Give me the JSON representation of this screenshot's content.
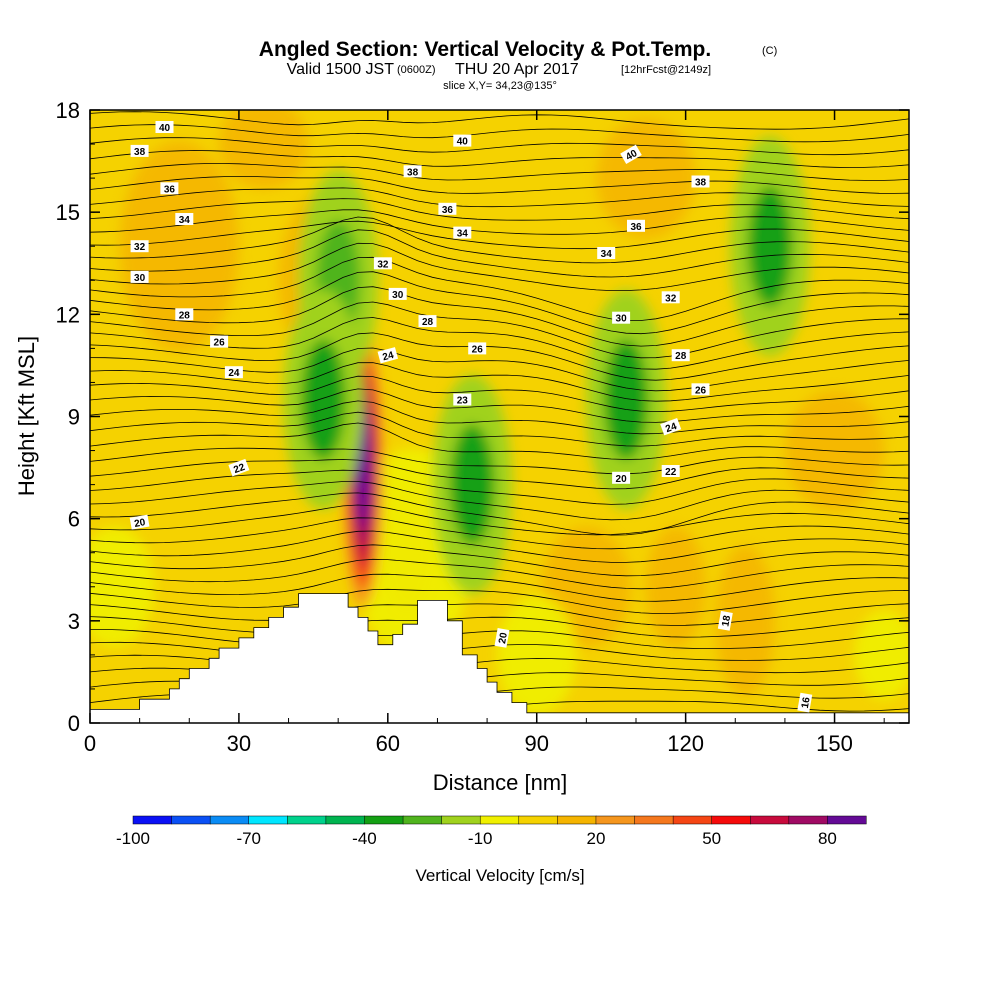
{
  "chart_data": {
    "type": "heatmap",
    "title": "Angled Section: Vertical Velocity & Pot.Temp.",
    "title_badge": "(C)",
    "subtitle_prefix": "Valid 1500 JST",
    "subtitle_zulu": "(0600Z)",
    "subtitle_main": "THU 20 Apr 2017",
    "subtitle_fcst": "[12hrFcst@2149z]",
    "slice_label": "slice X,Y= 34,23@135°",
    "xlabel": "Distance [nm]",
    "ylabel": "Height [Kft MSL]",
    "xlim": [
      0,
      165
    ],
    "ylim": [
      0,
      18
    ],
    "x_ticks": [
      "0",
      "30",
      "60",
      "90",
      "120",
      "150"
    ],
    "y_ticks": [
      "0",
      "3",
      "6",
      "9",
      "12",
      "15",
      "18"
    ],
    "colorbar": {
      "label": "Vertical Velocity [cm/s]",
      "levels": [
        -100,
        -90,
        -80,
        -70,
        -60,
        -50,
        -40,
        -30,
        -20,
        -10,
        0,
        10,
        20,
        30,
        40,
        50,
        60,
        70,
        80,
        90
      ],
      "tick_labels": [
        "-100",
        "-70",
        "-40",
        "-10",
        "20",
        "50",
        "80"
      ],
      "colors": [
        "#0a10f5",
        "#0a50f5",
        "#0a8cf5",
        "#00e6ff",
        "#00d28c",
        "#00b450",
        "#14a014",
        "#50b41e",
        "#a0d21e",
        "#f0f000",
        "#f5d200",
        "#f5b400",
        "#f5961e",
        "#f5781e",
        "#f54614",
        "#f50a0a",
        "#c80a3c",
        "#a00a64",
        "#640a96"
      ]
    },
    "regions": [
      {
        "name": "updraft-core",
        "x": 55,
        "y": 7.5,
        "peak_cms": 90
      },
      {
        "name": "downdraft-upper-left",
        "x": 50,
        "y": 13.0,
        "value_cms": -30
      },
      {
        "name": "downdraft-lower-left",
        "x": 47,
        "y": 9.5,
        "value_cms": -40
      },
      {
        "name": "downdraft-mid",
        "x": 77,
        "y": 7.0,
        "value_cms": -40
      },
      {
        "name": "downdraft-right",
        "x": 108,
        "y": 9.5,
        "value_cms": -40
      },
      {
        "name": "downdraft-far-right",
        "x": 137,
        "y": 14.0,
        "value_cms": -40
      }
    ],
    "theta_contour_labels": [
      {
        "text": "40",
        "x": 15,
        "y": 17.5,
        "rot": 0
      },
      {
        "text": "38",
        "x": 10,
        "y": 16.8,
        "rot": 0
      },
      {
        "text": "36",
        "x": 16,
        "y": 15.7,
        "rot": 0
      },
      {
        "text": "34",
        "x": 19,
        "y": 14.8,
        "rot": 0
      },
      {
        "text": "32",
        "x": 10,
        "y": 14.0,
        "rot": 0
      },
      {
        "text": "30",
        "x": 10,
        "y": 13.1,
        "rot": 0
      },
      {
        "text": "28",
        "x": 19,
        "y": 12.0,
        "rot": 0
      },
      {
        "text": "26",
        "x": 26,
        "y": 11.2,
        "rot": 0
      },
      {
        "text": "24",
        "x": 29,
        "y": 10.3,
        "rot": 0
      },
      {
        "text": "22",
        "x": 30,
        "y": 7.5,
        "rot": -20
      },
      {
        "text": "20",
        "x": 10,
        "y": 5.9,
        "rot": -10
      },
      {
        "text": "40",
        "x": 75,
        "y": 17.1,
        "rot": 0
      },
      {
        "text": "38",
        "x": 65,
        "y": 16.2,
        "rot": 0
      },
      {
        "text": "36",
        "x": 72,
        "y": 15.1,
        "rot": 0
      },
      {
        "text": "34",
        "x": 75,
        "y": 14.4,
        "rot": 0
      },
      {
        "text": "32",
        "x": 59,
        "y": 13.5,
        "rot": 0
      },
      {
        "text": "30",
        "x": 62,
        "y": 12.6,
        "rot": 0
      },
      {
        "text": "28",
        "x": 68,
        "y": 11.8,
        "rot": 0
      },
      {
        "text": "26",
        "x": 78,
        "y": 11.0,
        "rot": 0
      },
      {
        "text": "24",
        "x": 60,
        "y": 10.8,
        "rot": -15
      },
      {
        "text": "23",
        "x": 75,
        "y": 9.5,
        "rot": 0
      },
      {
        "text": "40",
        "x": 109,
        "y": 16.7,
        "rot": -30
      },
      {
        "text": "38",
        "x": 123,
        "y": 15.9,
        "rot": 0
      },
      {
        "text": "36",
        "x": 110,
        "y": 14.6,
        "rot": 0
      },
      {
        "text": "34",
        "x": 104,
        "y": 13.8,
        "rot": 0
      },
      {
        "text": "32",
        "x": 117,
        "y": 12.5,
        "rot": 0
      },
      {
        "text": "30",
        "x": 107,
        "y": 11.9,
        "rot": 0
      },
      {
        "text": "28",
        "x": 119,
        "y": 10.8,
        "rot": 0
      },
      {
        "text": "26",
        "x": 123,
        "y": 9.8,
        "rot": 0
      },
      {
        "text": "24",
        "x": 117,
        "y": 8.7,
        "rot": -20
      },
      {
        "text": "22",
        "x": 117,
        "y": 7.4,
        "rot": 0
      },
      {
        "text": "20",
        "x": 107,
        "y": 7.2,
        "rot": 0
      },
      {
        "text": "20",
        "x": 83,
        "y": 2.5,
        "rot": -80
      },
      {
        "text": "18",
        "x": 128,
        "y": 3.0,
        "rot": -80
      },
      {
        "text": "16",
        "x": 144,
        "y": 0.6,
        "rot": -80
      }
    ],
    "terrain_profile": [
      [
        0,
        0.4
      ],
      [
        10,
        0.4
      ],
      [
        10,
        0.7
      ],
      [
        16,
        0.7
      ],
      [
        16,
        1.0
      ],
      [
        18,
        1.0
      ],
      [
        18,
        1.3
      ],
      [
        20,
        1.3
      ],
      [
        20,
        1.6
      ],
      [
        24,
        1.6
      ],
      [
        24,
        1.9
      ],
      [
        26,
        1.9
      ],
      [
        26,
        2.2
      ],
      [
        30,
        2.2
      ],
      [
        30,
        2.5
      ],
      [
        33,
        2.5
      ],
      [
        33,
        2.8
      ],
      [
        36,
        2.8
      ],
      [
        36,
        3.1
      ],
      [
        39,
        3.1
      ],
      [
        39,
        3.4
      ],
      [
        42,
        3.4
      ],
      [
        42,
        3.8
      ],
      [
        52,
        3.8
      ],
      [
        52,
        3.4
      ],
      [
        54,
        3.4
      ],
      [
        54,
        3.1
      ],
      [
        56,
        3.1
      ],
      [
        56,
        2.7
      ],
      [
        58,
        2.7
      ],
      [
        58,
        2.3
      ],
      [
        61,
        2.3
      ],
      [
        61,
        2.6
      ],
      [
        63,
        2.6
      ],
      [
        63,
        2.9
      ],
      [
        66,
        2.9
      ],
      [
        66,
        3.6
      ],
      [
        72,
        3.6
      ],
      [
        72,
        3.0
      ],
      [
        75,
        3.0
      ],
      [
        75,
        2.0
      ],
      [
        78,
        2.0
      ],
      [
        78,
        1.6
      ],
      [
        80,
        1.6
      ],
      [
        80,
        1.2
      ],
      [
        82,
        1.2
      ],
      [
        82,
        0.9
      ],
      [
        85,
        0.9
      ],
      [
        85,
        0.6
      ],
      [
        88,
        0.6
      ],
      [
        88,
        0.3
      ],
      [
        165,
        0.3
      ]
    ]
  }
}
